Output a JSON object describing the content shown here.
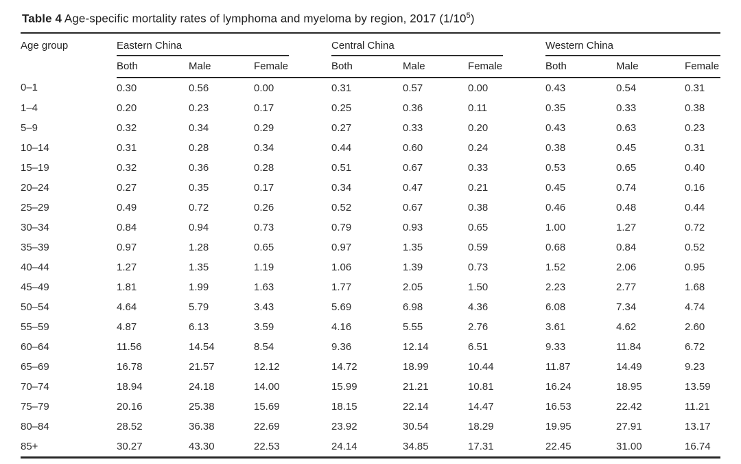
{
  "title": {
    "bold": "Table 4",
    "text": " Age-specific mortality rates of lymphoma and myeloma by region, 2017 (1/10",
    "superscript": "5",
    "suffix": ")"
  },
  "table": {
    "age_group_header": "Age group",
    "groups": [
      {
        "label": "Eastern China"
      },
      {
        "label": "Central China"
      },
      {
        "label": "Western China"
      }
    ],
    "sub_headers": [
      "Both",
      "Male",
      "Female"
    ],
    "rows": [
      [
        "0–1",
        "0.30",
        "0.56",
        "0.00",
        "0.31",
        "0.57",
        "0.00",
        "0.43",
        "0.54",
        "0.31"
      ],
      [
        "1–4",
        "0.20",
        "0.23",
        "0.17",
        "0.25",
        "0.36",
        "0.11",
        "0.35",
        "0.33",
        "0.38"
      ],
      [
        "5–9",
        "0.32",
        "0.34",
        "0.29",
        "0.27",
        "0.33",
        "0.20",
        "0.43",
        "0.63",
        "0.23"
      ],
      [
        "10–14",
        "0.31",
        "0.28",
        "0.34",
        "0.44",
        "0.60",
        "0.24",
        "0.38",
        "0.45",
        "0.31"
      ],
      [
        "15–19",
        "0.32",
        "0.36",
        "0.28",
        "0.51",
        "0.67",
        "0.33",
        "0.53",
        "0.65",
        "0.40"
      ],
      [
        "20–24",
        "0.27",
        "0.35",
        "0.17",
        "0.34",
        "0.47",
        "0.21",
        "0.45",
        "0.74",
        "0.16"
      ],
      [
        "25–29",
        "0.49",
        "0.72",
        "0.26",
        "0.52",
        "0.67",
        "0.38",
        "0.46",
        "0.48",
        "0.44"
      ],
      [
        "30–34",
        "0.84",
        "0.94",
        "0.73",
        "0.79",
        "0.93",
        "0.65",
        "1.00",
        "1.27",
        "0.72"
      ],
      [
        "35–39",
        "0.97",
        "1.28",
        "0.65",
        "0.97",
        "1.35",
        "0.59",
        "0.68",
        "0.84",
        "0.52"
      ],
      [
        "40–44",
        "1.27",
        "1.35",
        "1.19",
        "1.06",
        "1.39",
        "0.73",
        "1.52",
        "2.06",
        "0.95"
      ],
      [
        "45–49",
        "1.81",
        "1.99",
        "1.63",
        "1.77",
        "2.05",
        "1.50",
        "2.23",
        "2.77",
        "1.68"
      ],
      [
        "50–54",
        "4.64",
        "5.79",
        "3.43",
        "5.69",
        "6.98",
        "4.36",
        "6.08",
        "7.34",
        "4.74"
      ],
      [
        "55–59",
        "4.87",
        "6.13",
        "3.59",
        "4.16",
        "5.55",
        "2.76",
        "3.61",
        "4.62",
        "2.60"
      ],
      [
        "60–64",
        "11.56",
        "14.54",
        "8.54",
        "9.36",
        "12.14",
        "6.51",
        "9.33",
        "11.84",
        "6.72"
      ],
      [
        "65–69",
        "16.78",
        "21.57",
        "12.12",
        "14.72",
        "18.99",
        "10.44",
        "11.87",
        "14.49",
        "9.23"
      ],
      [
        "70–74",
        "18.94",
        "24.18",
        "14.00",
        "15.99",
        "21.21",
        "10.81",
        "16.24",
        "18.95",
        "13.59"
      ],
      [
        "75–79",
        "20.16",
        "25.38",
        "15.69",
        "18.15",
        "22.14",
        "14.47",
        "16.53",
        "22.42",
        "11.21"
      ],
      [
        "80–84",
        "28.52",
        "36.38",
        "22.69",
        "23.92",
        "30.54",
        "18.29",
        "19.95",
        "27.91",
        "13.17"
      ],
      [
        "85+",
        "30.27",
        "43.30",
        "22.53",
        "24.14",
        "34.85",
        "17.31",
        "22.45",
        "31.00",
        "16.74"
      ]
    ]
  }
}
